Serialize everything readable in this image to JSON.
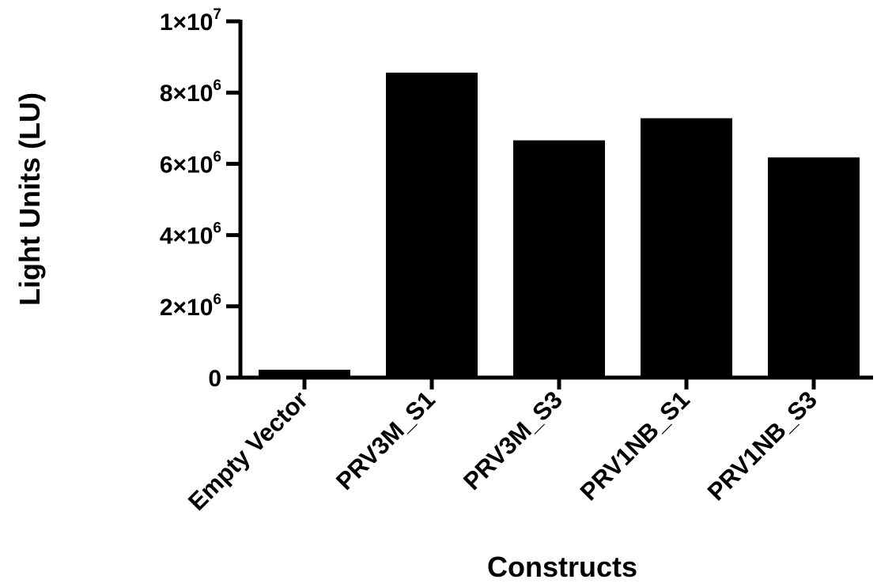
{
  "chart_data": {
    "type": "bar",
    "title": "",
    "xlabel": "Constructs",
    "ylabel": "Light Units (LU)",
    "categories": [
      "Empty Vector",
      "PRV3M_S1",
      "PRV3M_S3",
      "PRV1NB_S1",
      "PRV1NB_S3"
    ],
    "values": [
      220000,
      8560000,
      6660000,
      7280000,
      6180000
    ],
    "ylim": [
      0,
      10000000
    ],
    "y_ticks": [
      {
        "value": 0,
        "mantissa": "0",
        "exponent": ""
      },
      {
        "value": 2000000,
        "mantissa": "2×10",
        "exponent": "6"
      },
      {
        "value": 4000000,
        "mantissa": "4×10",
        "exponent": "6"
      },
      {
        "value": 6000000,
        "mantissa": "6×10",
        "exponent": "6"
      },
      {
        "value": 8000000,
        "mantissa": "8×10",
        "exponent": "6"
      },
      {
        "value": 10000000,
        "mantissa": "1×10",
        "exponent": "7"
      }
    ],
    "grid": false,
    "legend": "none",
    "bar_color": "#000000"
  }
}
